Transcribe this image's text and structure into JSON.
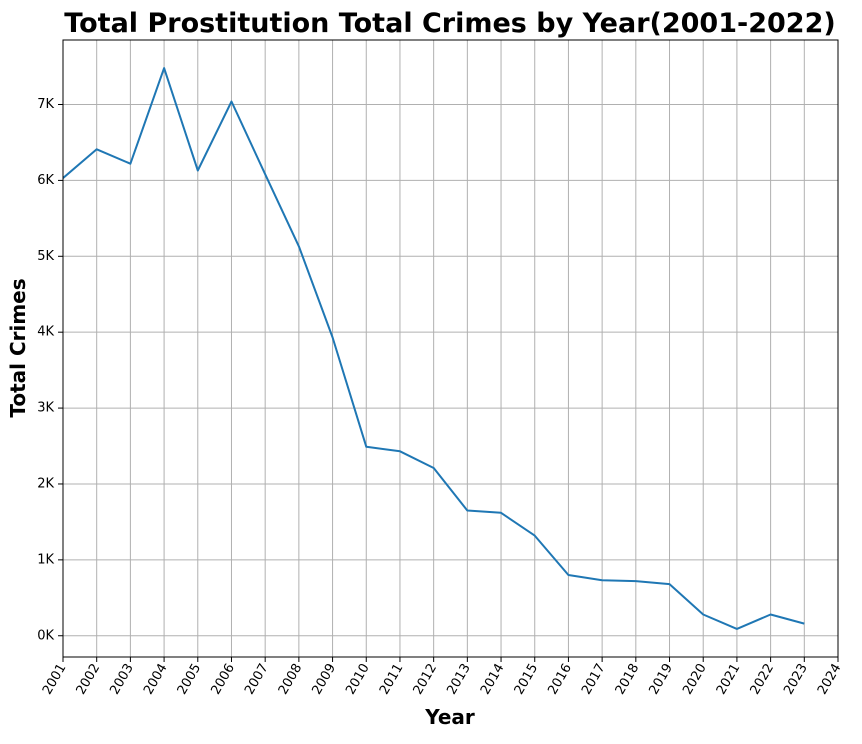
{
  "chart_data": {
    "type": "line",
    "title": "Total Prostitution Total Crimes by Year(2001-2022)",
    "xlabel": "Year",
    "ylabel": "Total Crimes",
    "xlim": [
      2001,
      2024
    ],
    "ylim": [
      -280,
      7850
    ],
    "x_ticks": [
      2001,
      2002,
      2003,
      2004,
      2005,
      2006,
      2007,
      2008,
      2009,
      2010,
      2011,
      2012,
      2013,
      2014,
      2015,
      2016,
      2017,
      2018,
      2019,
      2020,
      2021,
      2022,
      2023,
      2024
    ],
    "y_ticks": [
      0,
      1000,
      2000,
      3000,
      4000,
      5000,
      6000,
      7000
    ],
    "y_tick_labels": [
      "0K",
      "1K",
      "2K",
      "3K",
      "4K",
      "5K",
      "6K",
      "7K"
    ],
    "grid": true,
    "colors": {
      "line": "#1f77b4",
      "grid": "#b0b0b0"
    },
    "series": [
      {
        "x": [
          2001,
          2002,
          2003,
          2004,
          2005,
          2006,
          2007,
          2008,
          2009,
          2010,
          2011,
          2012,
          2013,
          2014,
          2015,
          2016,
          2017,
          2018,
          2019,
          2020,
          2021,
          2022,
          2023
        ],
        "values": [
          6030,
          6410,
          6220,
          7480,
          6130,
          7040,
          6080,
          5130,
          3930,
          2490,
          2430,
          2210,
          1650,
          1620,
          1320,
          800,
          730,
          720,
          680,
          280,
          90,
          280,
          160
        ]
      }
    ]
  }
}
